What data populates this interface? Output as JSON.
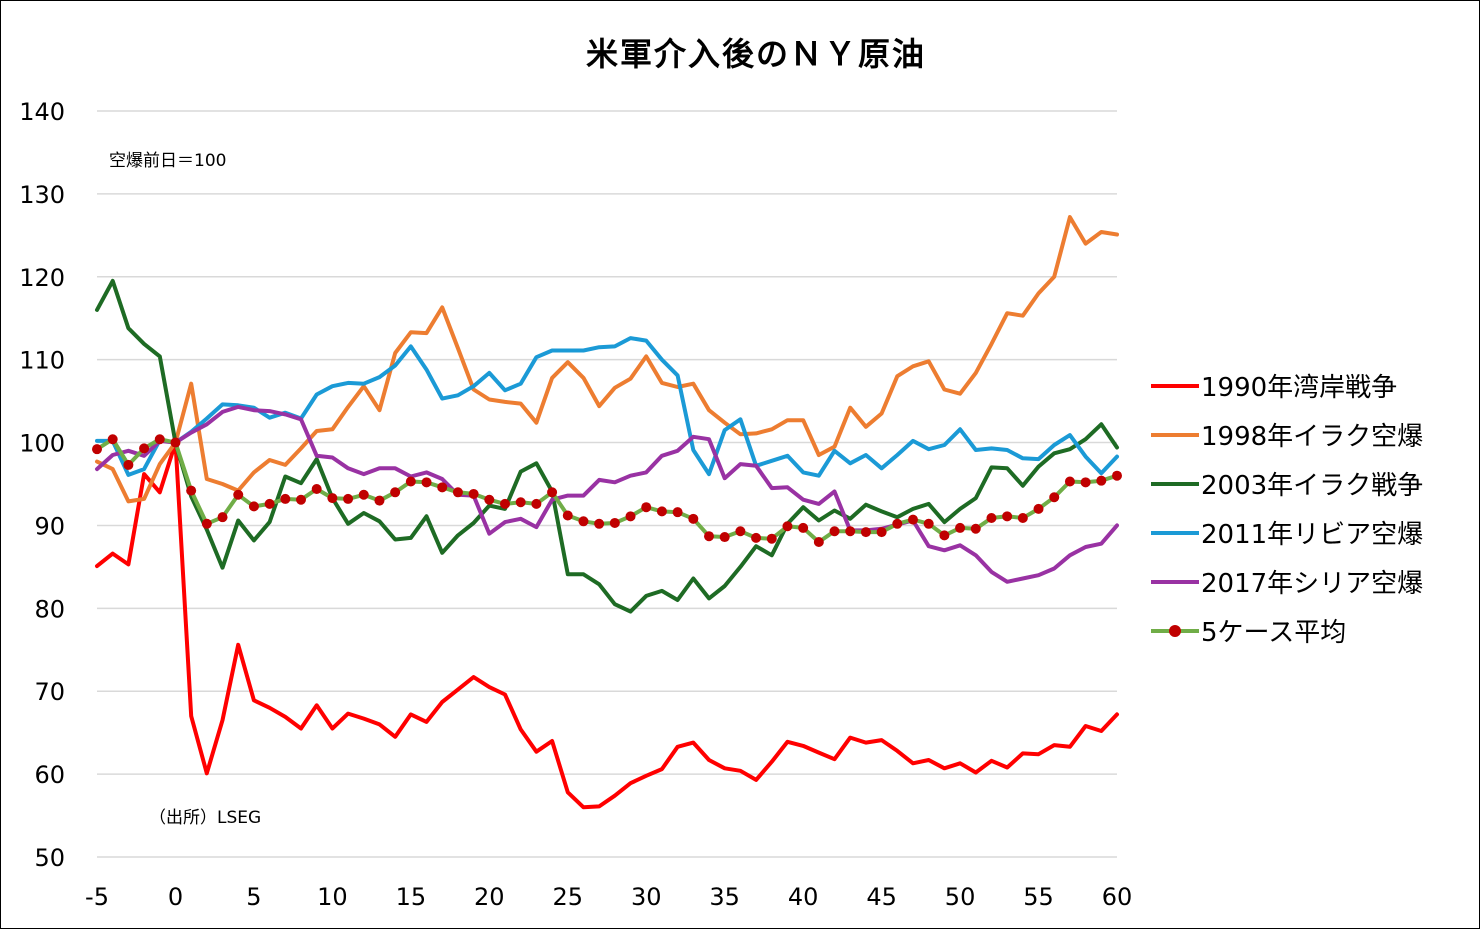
{
  "chart_data": {
    "type": "line",
    "title": "米軍介入後のＮＹ原油",
    "annotations": {
      "base_note": "空爆前日＝100",
      "source": "（出所）LSEG"
    },
    "xlim": [
      -5,
      60
    ],
    "ylim": [
      50,
      140
    ],
    "x_ticks": [
      -5,
      0,
      5,
      10,
      15,
      20,
      25,
      30,
      35,
      40,
      45,
      50,
      55,
      60
    ],
    "y_ticks": [
      50,
      60,
      70,
      80,
      90,
      100,
      110,
      120,
      130,
      140
    ],
    "grid": "horizontal",
    "legend_position": "right",
    "x": [
      -5,
      -4,
      -3,
      -2,
      -1,
      0,
      1,
      2,
      3,
      4,
      5,
      6,
      7,
      8,
      9,
      10,
      11,
      12,
      13,
      14,
      15,
      16,
      17,
      18,
      19,
      20,
      21,
      22,
      23,
      24,
      25,
      26,
      27,
      28,
      29,
      30,
      31,
      32,
      33,
      34,
      35,
      36,
      37,
      38,
      39,
      40,
      41,
      42,
      43,
      44,
      45,
      46,
      47,
      48,
      49,
      50,
      51,
      52,
      53,
      54,
      55,
      56,
      57,
      58,
      59,
      60
    ],
    "series": [
      {
        "name": "1990年湾岸戦争",
        "color": "#ff0000",
        "marker": false,
        "values": [
          85.1,
          86.6,
          85.3,
          96.2,
          94.0,
          100.0,
          67.0,
          60.1,
          66.5,
          75.6,
          68.9,
          68.0,
          66.9,
          65.5,
          68.3,
          65.5,
          67.3,
          66.7,
          66.0,
          64.5,
          67.2,
          66.3,
          68.7,
          70.2,
          71.7,
          70.5,
          69.6,
          65.4,
          62.7,
          64.0,
          57.8,
          56.0,
          56.1,
          57.4,
          58.9,
          59.8,
          60.6,
          63.3,
          63.8,
          61.7,
          60.7,
          60.4,
          59.3,
          61.5,
          63.9,
          63.4,
          62.6,
          61.8,
          64.4,
          63.8,
          64.1,
          62.8,
          61.3,
          61.7,
          60.7,
          61.3,
          60.2,
          61.6,
          60.8,
          62.5,
          62.4,
          63.5,
          63.3,
          65.8,
          65.2,
          67.2
        ]
      },
      {
        "name": "1998年イラク空爆",
        "color": "#ed7d31",
        "marker": false,
        "values": [
          97.7,
          96.8,
          92.9,
          93.2,
          97.4,
          100.0,
          107.1,
          95.6,
          95.0,
          94.2,
          96.4,
          97.9,
          97.3,
          99.3,
          101.4,
          101.6,
          104.3,
          106.8,
          103.9,
          110.8,
          113.3,
          113.2,
          116.3,
          111.4,
          106.4,
          105.2,
          104.9,
          104.7,
          102.4,
          107.8,
          109.7,
          107.8,
          104.4,
          106.6,
          107.7,
          110.4,
          107.2,
          106.7,
          107.1,
          103.9,
          102.4,
          101.0,
          101.1,
          101.6,
          102.7,
          102.7,
          98.5,
          99.5,
          104.2,
          101.9,
          103.5,
          108.0,
          109.2,
          109.8,
          106.4,
          105.9,
          108.4,
          111.9,
          115.6,
          115.3,
          118.0,
          120.0,
          127.2,
          124.0,
          125.4,
          125.1
        ]
      },
      {
        "name": "2003年イラク戦争",
        "color": "#1e6b24",
        "marker": false,
        "values": [
          116.0,
          119.5,
          113.8,
          111.9,
          110.4,
          100.0,
          93.5,
          89.5,
          84.9,
          90.6,
          88.2,
          90.4,
          95.9,
          95.1,
          98.0,
          93.3,
          90.2,
          91.5,
          90.5,
          88.3,
          88.5,
          91.1,
          86.7,
          88.8,
          90.3,
          92.4,
          92.0,
          96.5,
          97.5,
          94.1,
          84.1,
          84.1,
          82.9,
          80.5,
          79.6,
          81.5,
          82.1,
          81.0,
          83.6,
          81.2,
          82.7,
          85.0,
          87.5,
          86.4,
          90.2,
          92.2,
          90.6,
          91.8,
          90.8,
          92.5,
          91.7,
          91.0,
          92.0,
          92.6,
          90.4,
          92.0,
          93.3,
          97.0,
          96.9,
          94.8,
          97.1,
          98.7,
          99.2,
          100.4,
          102.2,
          99.4
        ]
      },
      {
        "name": "2011年リビア空爆",
        "color": "#1b9ad6",
        "marker": false,
        "values": [
          100.2,
          100.2,
          96.1,
          96.8,
          100.3,
          100.0,
          101.3,
          102.9,
          104.6,
          104.5,
          104.2,
          103.0,
          103.6,
          102.9,
          105.8,
          106.8,
          107.2,
          107.1,
          107.9,
          109.3,
          111.6,
          108.8,
          105.3,
          105.7,
          106.8,
          108.4,
          106.3,
          107.1,
          110.3,
          111.1,
          111.1,
          111.1,
          111.5,
          111.6,
          112.6,
          112.3,
          110.0,
          108.1,
          99.1,
          96.2,
          101.5,
          102.8,
          97.2,
          97.8,
          98.4,
          96.4,
          96.0,
          99.0,
          97.5,
          98.5,
          96.9,
          98.5,
          100.2,
          99.2,
          99.7,
          101.6,
          99.1,
          99.3,
          99.1,
          98.1,
          98.0,
          99.7,
          100.9,
          98.3,
          96.3,
          98.3
        ]
      },
      {
        "name": "2017年シリア空爆",
        "color": "#9932a3",
        "marker": false,
        "values": [
          96.8,
          98.5,
          99.0,
          98.4,
          100.2,
          100.0,
          101.2,
          102.2,
          103.7,
          104.3,
          103.9,
          103.8,
          103.4,
          102.8,
          98.4,
          98.2,
          96.9,
          96.2,
          96.9,
          96.9,
          95.9,
          96.4,
          95.6,
          93.7,
          93.6,
          89.0,
          90.4,
          90.8,
          89.8,
          93.1,
          93.6,
          93.6,
          95.5,
          95.2,
          96.0,
          96.4,
          98.4,
          99.0,
          100.7,
          100.4,
          95.7,
          97.4,
          97.2,
          94.5,
          94.6,
          93.1,
          92.6,
          94.1,
          89.4,
          89.4,
          89.6,
          90.1,
          90.6,
          87.5,
          87.0,
          87.6,
          86.4,
          84.4,
          83.2,
          83.6,
          84.0,
          84.8,
          86.4,
          87.4,
          87.8,
          90.0
        ]
      },
      {
        "name": "5ケース平均",
        "color": "#70ad47",
        "marker": true,
        "marker_color": "#c00000",
        "values": [
          99.2,
          100.4,
          97.3,
          99.3,
          100.4,
          100.0,
          94.2,
          90.2,
          91.0,
          93.7,
          92.3,
          92.6,
          93.2,
          93.1,
          94.4,
          93.3,
          93.2,
          93.7,
          93.0,
          94.0,
          95.3,
          95.2,
          94.6,
          94.0,
          93.8,
          93.1,
          92.6,
          92.8,
          92.6,
          94.0,
          91.2,
          90.5,
          90.2,
          90.3,
          91.1,
          92.2,
          91.7,
          91.6,
          90.8,
          88.7,
          88.6,
          89.3,
          88.5,
          88.4,
          89.9,
          89.7,
          88.0,
          89.3,
          89.3,
          89.2,
          89.2,
          90.2,
          90.7,
          90.2,
          88.8,
          89.7,
          89.6,
          90.9,
          91.1,
          90.9,
          92.0,
          93.4,
          95.3,
          95.2,
          95.4,
          96.0
        ]
      }
    ]
  }
}
